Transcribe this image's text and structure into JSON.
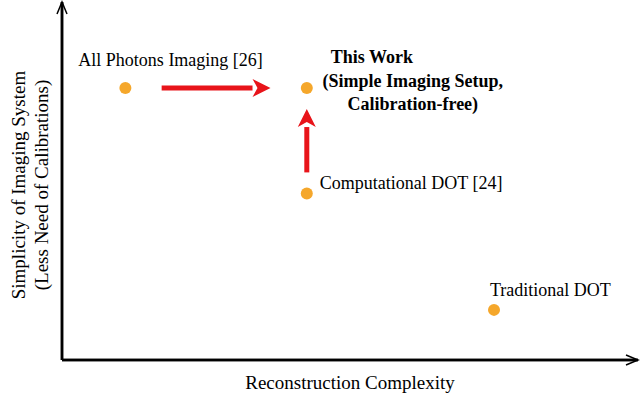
{
  "chart_data": {
    "type": "scatter",
    "xlabel": "Reconstruction Complexity",
    "ylabel": [
      "Simplicity of Imaging System",
      "(Less Need of Calibrations)"
    ],
    "xlim": [
      0,
      100
    ],
    "ylim": [
      0,
      100
    ],
    "tick_labels": false,
    "grid": false,
    "color": "#f5a72b",
    "points": [
      {
        "label": "All Photons Imaging [26]",
        "x": 11,
        "y": 76
      },
      {
        "label": "This Work",
        "note": [
          "(Simple Imaging Setup,",
          "Calibration-free)"
        ],
        "x": 42.5,
        "y": 76
      },
      {
        "label": "Computational DOT [24]",
        "x": 42.5,
        "y": 46.5
      },
      {
        "label": "Traditional DOT",
        "x": 75,
        "y": 14
      }
    ],
    "arrows": [
      {
        "from": "All Photons Imaging [26]",
        "to": "This Work"
      },
      {
        "from": "Computational DOT [24]",
        "to": "This Work"
      }
    ]
  }
}
